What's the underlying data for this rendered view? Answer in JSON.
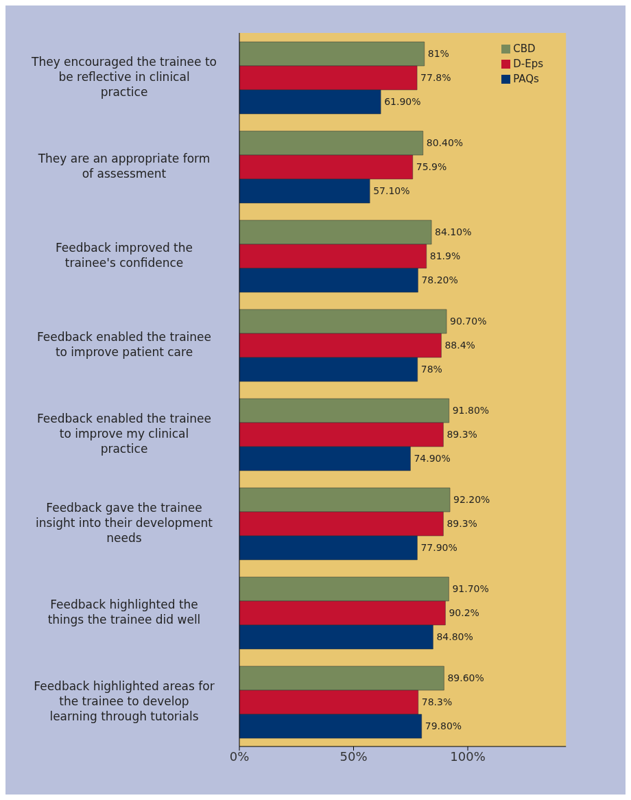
{
  "chart_data": {
    "type": "bar",
    "orientation": "horizontal",
    "categories": [
      "They encouraged the trainee to be reflective in clinical practice",
      "They are an appropriate form of assessment",
      "Feedback improved the trainee's confidence",
      "Feedback enabled the trainee to improve patient care",
      "Feedback enabled the trainee to improve my clinical practice",
      "Feedback gave the trainee insight into their development needs",
      "Feedback highlighted the things the trainee did well",
      "Feedback highlighted areas for the trainee to develop learning through tutorials"
    ],
    "series": [
      {
        "name": "CBD",
        "color": "#778a5b",
        "values": [
          81,
          80.4,
          84.1,
          90.7,
          91.8,
          92.2,
          91.7,
          89.6
        ],
        "value_labels": [
          "81%",
          "80.40%",
          "84.10%",
          "90.70%",
          "91.80%",
          "92.20%",
          "91.70%",
          "89.60%"
        ]
      },
      {
        "name": "D-Eps",
        "color": "#c41230",
        "values": [
          77.8,
          75.9,
          81.9,
          88.4,
          89.3,
          89.3,
          90.2,
          78.3
        ],
        "value_labels": [
          "77.8%",
          "75.9%",
          "81.9%",
          "88.4%",
          "89.3%",
          "89.3%",
          "90.2%",
          "78.3%"
        ]
      },
      {
        "name": "PAQs",
        "color": "#003471",
        "values": [
          61.9,
          57.1,
          78.2,
          78,
          74.9,
          77.9,
          84.8,
          79.8
        ],
        "value_labels": [
          "61.90%",
          "57.10%",
          "78.20%",
          "78%",
          "74.90%",
          "77.90%",
          "84.80%",
          "79.80%"
        ]
      }
    ],
    "xlim": [
      0,
      143
    ],
    "xticks": [
      {
        "value": 0,
        "label": "0%"
      },
      {
        "value": 50,
        "label": "50%"
      },
      {
        "value": 100,
        "label": "100%"
      }
    ],
    "grid": false,
    "legend": "top right"
  }
}
